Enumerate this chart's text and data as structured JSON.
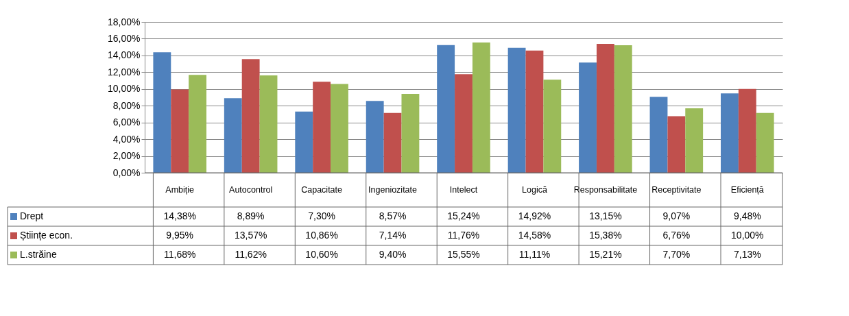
{
  "chart_data": {
    "type": "bar",
    "categories": [
      "Ambiție",
      "Autocontrol",
      "Capacitate",
      "Ingeniozitate",
      "Intelect",
      "Logică",
      "Responsabilitate",
      "Receptivitate",
      "Eficiență"
    ],
    "series": [
      {
        "name": "Drept",
        "color": "#4f81bd",
        "values": [
          14.38,
          8.89,
          7.3,
          8.57,
          15.24,
          14.92,
          13.15,
          9.07,
          9.48
        ],
        "value_labels": [
          "14,38%",
          "8,89%",
          "7,30%",
          "8,57%",
          "15,24%",
          "14,92%",
          "13,15%",
          "9,07%",
          "9,48%"
        ]
      },
      {
        "name": "Științe econ.",
        "color": "#c0504d",
        "values": [
          9.95,
          13.57,
          10.86,
          7.14,
          11.76,
          14.58,
          15.38,
          6.76,
          10.0
        ],
        "value_labels": [
          "9,95%",
          "13,57%",
          "10,86%",
          "7,14%",
          "11,76%",
          "14,58%",
          "15,38%",
          "6,76%",
          "10,00%"
        ]
      },
      {
        "name": "L.străine",
        "color": "#9bbb59",
        "values": [
          11.68,
          11.62,
          10.6,
          9.4,
          15.55,
          11.11,
          15.21,
          7.7,
          7.13
        ],
        "value_labels": [
          "11,68%",
          "11,62%",
          "10,60%",
          "9,40%",
          "15,55%",
          "11,11%",
          "15,21%",
          "7,70%",
          "7,13%"
        ]
      }
    ],
    "ylim": [
      0,
      18
    ],
    "yticks": [
      {
        "value": 0,
        "label": "0,00%"
      },
      {
        "value": 2,
        "label": "2,00%"
      },
      {
        "value": 4,
        "label": "4,00%"
      },
      {
        "value": 6,
        "label": "6,00%"
      },
      {
        "value": 8,
        "label": "8,00%"
      },
      {
        "value": 10,
        "label": "10,00%"
      },
      {
        "value": 12,
        "label": "12,00%"
      },
      {
        "value": 14,
        "label": "14,00%"
      },
      {
        "value": 16,
        "label": "16,00%"
      },
      {
        "value": 18,
        "label": "18,00%"
      }
    ],
    "grid": true,
    "legend": "bottom"
  }
}
